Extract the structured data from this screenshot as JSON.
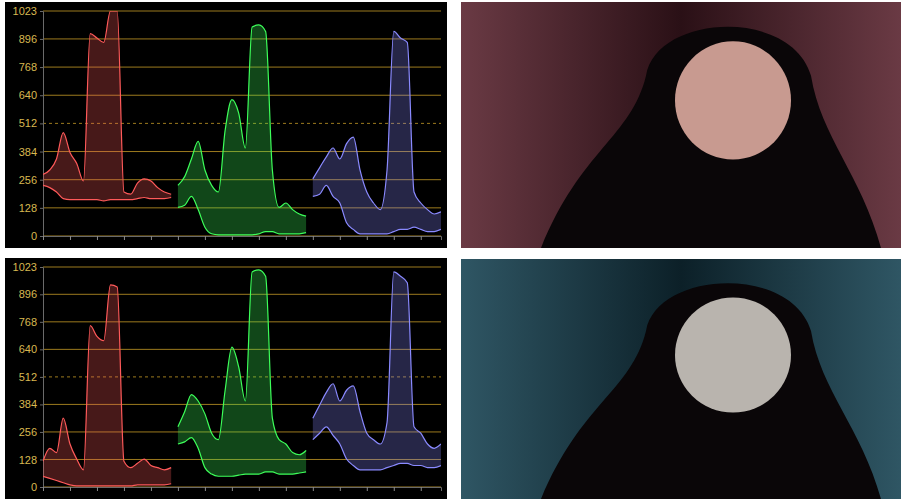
{
  "chart_data": [
    {
      "type": "area",
      "ylim": [
        0,
        1023
      ],
      "yticks": [
        0,
        128,
        256,
        384,
        512,
        640,
        768,
        896,
        1023
      ],
      "xlim": [
        0,
        59
      ],
      "xticks": [
        0,
        4,
        8,
        12,
        16,
        20,
        24,
        28,
        32,
        36,
        40,
        44,
        48,
        52,
        56
      ],
      "grid": true,
      "tick_labels": "y",
      "series": [
        {
          "color": "#ff5a5a",
          "x": [
            0,
            1,
            2,
            3,
            4,
            5,
            6,
            7,
            8,
            9,
            10,
            11,
            12,
            13,
            14,
            15,
            16,
            17,
            18,
            19
          ],
          "values": [
            280,
            300,
            350,
            470,
            380,
            330,
            250,
            920,
            900,
            880,
            1023,
            1023,
            200,
            190,
            240,
            260,
            250,
            220,
            200,
            190
          ],
          "lower": [
            230,
            220,
            200,
            170,
            165,
            165,
            165,
            165,
            165,
            160,
            165,
            165,
            165,
            165,
            170,
            175,
            170,
            170,
            170,
            175
          ]
        },
        {
          "color": "#3dff5a",
          "x": [
            20,
            21,
            22,
            23,
            24,
            25,
            26,
            27,
            28,
            29,
            30,
            31,
            32,
            33,
            34,
            35,
            36,
            37,
            38,
            39
          ],
          "values": [
            230,
            270,
            350,
            430,
            300,
            230,
            200,
            480,
            620,
            560,
            400,
            950,
            960,
            930,
            300,
            130,
            150,
            120,
            100,
            90
          ],
          "lower": [
            130,
            140,
            180,
            120,
            40,
            10,
            5,
            5,
            5,
            5,
            5,
            5,
            10,
            20,
            20,
            10,
            10,
            10,
            10,
            15
          ]
        },
        {
          "color": "#8a8aff",
          "x": [
            40,
            41,
            42,
            43,
            44,
            45,
            46,
            47,
            48,
            49,
            50,
            51,
            52,
            53,
            54,
            55,
            56,
            57,
            58,
            59
          ],
          "values": [
            260,
            310,
            360,
            400,
            350,
            420,
            450,
            300,
            200,
            150,
            120,
            300,
            930,
            900,
            880,
            200,
            150,
            120,
            100,
            110
          ],
          "lower": [
            180,
            190,
            230,
            180,
            150,
            60,
            30,
            10,
            10,
            10,
            10,
            10,
            20,
            30,
            30,
            40,
            30,
            20,
            20,
            30
          ]
        }
      ]
    },
    {
      "type": "area",
      "ylim": [
        0,
        1023
      ],
      "yticks": [
        0,
        128,
        256,
        384,
        512,
        640,
        768,
        896,
        1023
      ],
      "xlim": [
        0,
        59
      ],
      "xticks": [
        0,
        4,
        8,
        12,
        16,
        20,
        24,
        28,
        32,
        36,
        40,
        44,
        48,
        52,
        56
      ],
      "grid": true,
      "tick_labels": "y",
      "series": [
        {
          "color": "#ff5a5a",
          "x": [
            0,
            1,
            2,
            3,
            4,
            5,
            6,
            7,
            8,
            9,
            10,
            11,
            12,
            13,
            14,
            15,
            16,
            17,
            18,
            19
          ],
          "values": [
            120,
            180,
            160,
            320,
            200,
            130,
            80,
            750,
            700,
            680,
            940,
            930,
            120,
            90,
            110,
            130,
            100,
            90,
            80,
            90
          ],
          "lower": [
            50,
            40,
            30,
            20,
            10,
            5,
            5,
            5,
            5,
            5,
            5,
            5,
            5,
            5,
            10,
            10,
            10,
            10,
            10,
            15
          ]
        },
        {
          "color": "#3dff5a",
          "x": [
            20,
            21,
            22,
            23,
            24,
            25,
            26,
            27,
            28,
            29,
            30,
            31,
            32,
            33,
            34,
            35,
            36,
            37,
            38,
            39
          ],
          "values": [
            280,
            350,
            430,
            400,
            340,
            250,
            220,
            450,
            650,
            560,
            400,
            1000,
            1010,
            980,
            320,
            220,
            200,
            160,
            150,
            170
          ],
          "lower": [
            200,
            210,
            230,
            180,
            90,
            60,
            50,
            50,
            50,
            55,
            60,
            60,
            60,
            70,
            70,
            60,
            60,
            60,
            65,
            70
          ]
        },
        {
          "color": "#8a8aff",
          "x": [
            40,
            41,
            42,
            43,
            44,
            45,
            46,
            47,
            48,
            49,
            50,
            51,
            52,
            53,
            54,
            55,
            56,
            57,
            58,
            59
          ],
          "values": [
            320,
            380,
            440,
            480,
            400,
            450,
            470,
            350,
            250,
            220,
            200,
            300,
            1000,
            980,
            950,
            280,
            250,
            200,
            180,
            200
          ],
          "lower": [
            220,
            250,
            280,
            240,
            200,
            130,
            100,
            80,
            80,
            80,
            80,
            90,
            100,
            110,
            110,
            100,
            100,
            90,
            90,
            100
          ]
        }
      ]
    }
  ]
}
